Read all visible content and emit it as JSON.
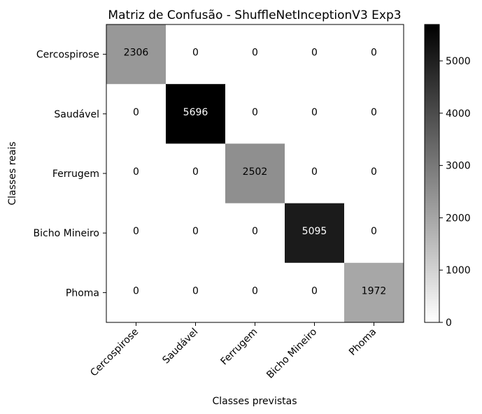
{
  "chart_data": {
    "type": "heatmap",
    "title": "Matriz de Confusão - ShuffleNetInceptionV3 Exp3",
    "xlabel": "Classes previstas",
    "ylabel": "Classes reais",
    "x_categories": [
      "Cercospirose",
      "Saudável",
      "Ferrugem",
      "Bicho Mineiro",
      "Phoma"
    ],
    "y_categories": [
      "Cercospirose",
      "Saudável",
      "Ferrugem",
      "Bicho Mineiro",
      "Phoma"
    ],
    "matrix": [
      [
        2306,
        0,
        0,
        0,
        0
      ],
      [
        0,
        5696,
        0,
        0,
        0
      ],
      [
        0,
        0,
        2502,
        0,
        0
      ],
      [
        0,
        0,
        0,
        5095,
        0
      ],
      [
        0,
        0,
        0,
        0,
        1972
      ]
    ],
    "colormap": "grayscale (white = 0, black = max)",
    "colorbar": {
      "range": [
        0,
        5696
      ],
      "ticks": [
        0,
        1000,
        2000,
        3000,
        4000,
        5000
      ]
    },
    "grid": false
  }
}
